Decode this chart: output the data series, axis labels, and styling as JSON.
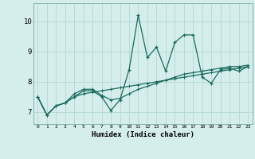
{
  "x": [
    0,
    1,
    2,
    3,
    4,
    5,
    6,
    7,
    8,
    9,
    10,
    11,
    12,
    13,
    14,
    15,
    16,
    17,
    18,
    19,
    20,
    21,
    22,
    23
  ],
  "line1": [
    7.5,
    6.9,
    7.2,
    7.3,
    7.5,
    7.7,
    7.7,
    7.5,
    7.05,
    7.4,
    8.4,
    10.2,
    8.8,
    9.15,
    8.35,
    9.3,
    9.55,
    9.55,
    8.15,
    7.95,
    8.4,
    8.45,
    8.35,
    8.5
  ],
  "line2": [
    7.5,
    6.9,
    7.2,
    7.3,
    7.6,
    7.75,
    7.75,
    7.55,
    7.4,
    7.45,
    7.6,
    7.75,
    7.85,
    7.95,
    8.05,
    8.15,
    8.25,
    8.3,
    8.35,
    8.4,
    8.45,
    8.5,
    8.5,
    8.55
  ],
  "line3": [
    7.5,
    6.9,
    7.2,
    7.3,
    7.5,
    7.6,
    7.65,
    7.7,
    7.75,
    7.8,
    7.85,
    7.9,
    7.95,
    8.0,
    8.05,
    8.1,
    8.15,
    8.2,
    8.25,
    8.3,
    8.35,
    8.4,
    8.45,
    8.5
  ],
  "bg_color": "#d5eeec",
  "grid_color": "#b8dbd8",
  "line_color": "#1a6b5e",
  "xlabel": "Humidex (Indice chaleur)",
  "yticks": [
    7,
    8,
    9,
    10
  ],
  "xtick_labels": [
    "0",
    "1",
    "2",
    "3",
    "4",
    "5",
    "6",
    "7",
    "8",
    "9",
    "10",
    "11",
    "12",
    "13",
    "14",
    "15",
    "16",
    "17",
    "18",
    "19",
    "20",
    "21",
    "22",
    "23"
  ],
  "ylim": [
    6.6,
    10.6
  ],
  "xlim": [
    -0.5,
    23.5
  ]
}
